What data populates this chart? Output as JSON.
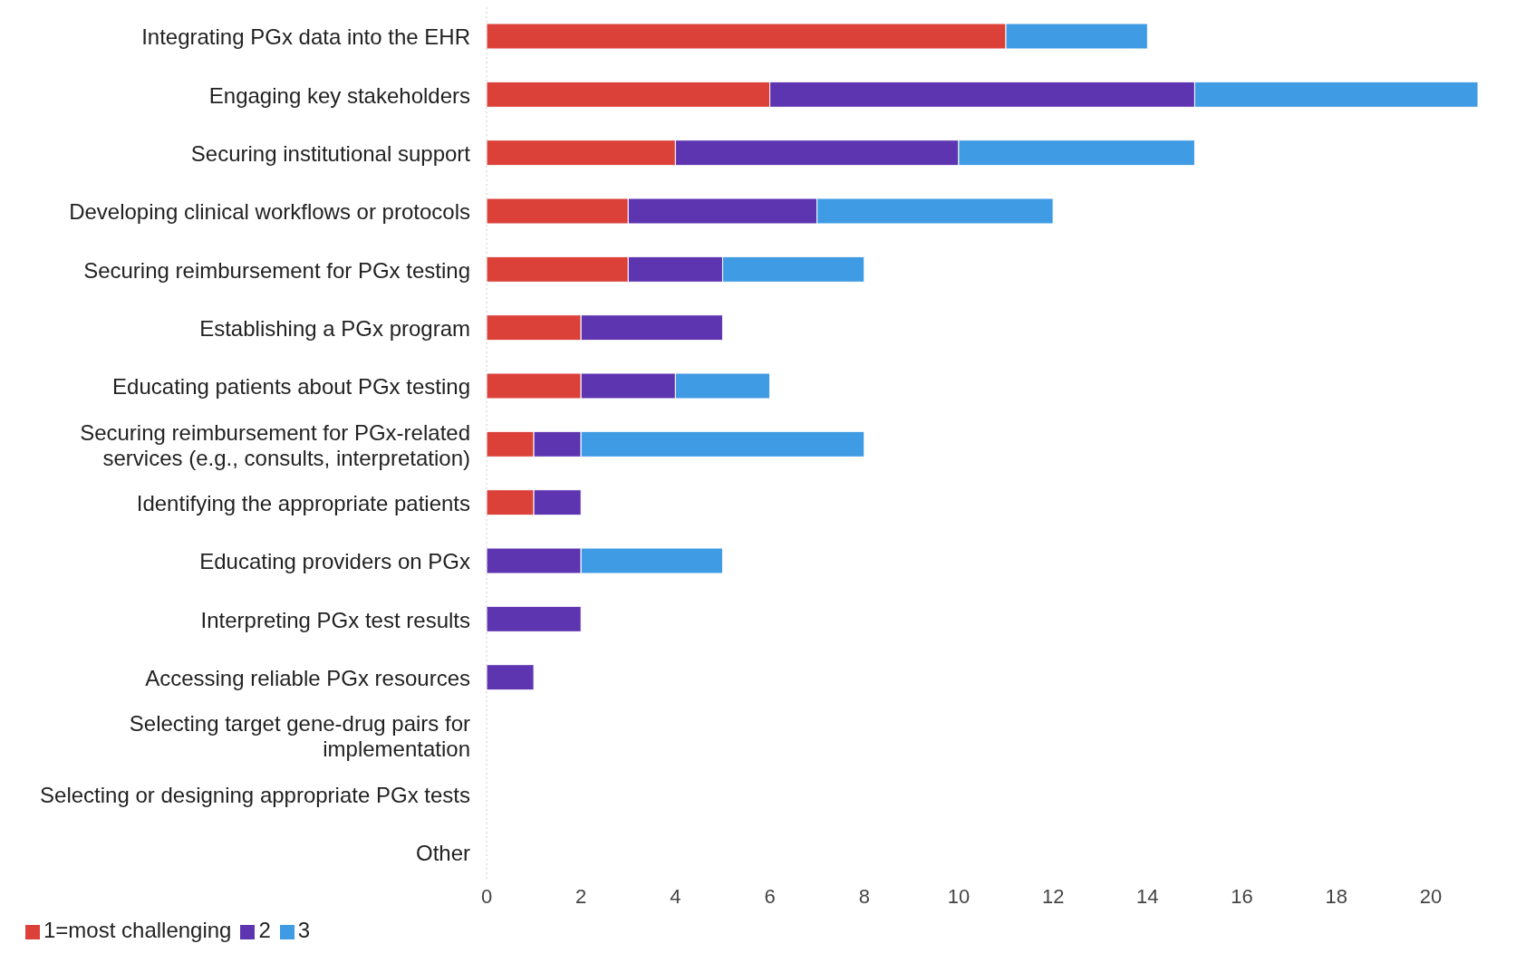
{
  "chart_data": {
    "type": "bar",
    "orientation": "horizontal",
    "stacked": true,
    "categories": [
      "Integrating PGx data into the EHR",
      "Engaging key stakeholders",
      "Securing institutional support",
      "Developing clinical workflows or protocols",
      "Securing reimbursement for PGx testing",
      "Establishing a PGx program",
      "Educating patients about PGx testing",
      "Securing reimbursement for PGx-related services (e.g., consults, interpretation)",
      "Identifying the appropriate patients",
      "Educating providers on PGx",
      "Interpreting PGx test results",
      "Accessing reliable PGx resources",
      "Selecting target gene-drug pairs for implementation",
      "Selecting or designing appropriate PGx tests",
      "Other"
    ],
    "series": [
      {
        "name": "1=most challenging",
        "color": "#db4139",
        "values": [
          11,
          6,
          4,
          3,
          3,
          2,
          2,
          1,
          1,
          0,
          0,
          0,
          0,
          0,
          0
        ]
      },
      {
        "name": "2",
        "color": "#5e35b1",
        "values": [
          0,
          9,
          6,
          4,
          2,
          3,
          2,
          1,
          1,
          2,
          2,
          1,
          0,
          0,
          0
        ]
      },
      {
        "name": "3",
        "color": "#3e9be4",
        "values": [
          3,
          6,
          5,
          5,
          3,
          0,
          2,
          6,
          0,
          3,
          0,
          0,
          0,
          0,
          0
        ]
      }
    ],
    "xlim": [
      0,
      21
    ],
    "xticks": [
      0,
      2,
      4,
      6,
      8,
      10,
      12,
      14,
      16,
      18,
      20
    ],
    "legend": "bottom left"
  }
}
